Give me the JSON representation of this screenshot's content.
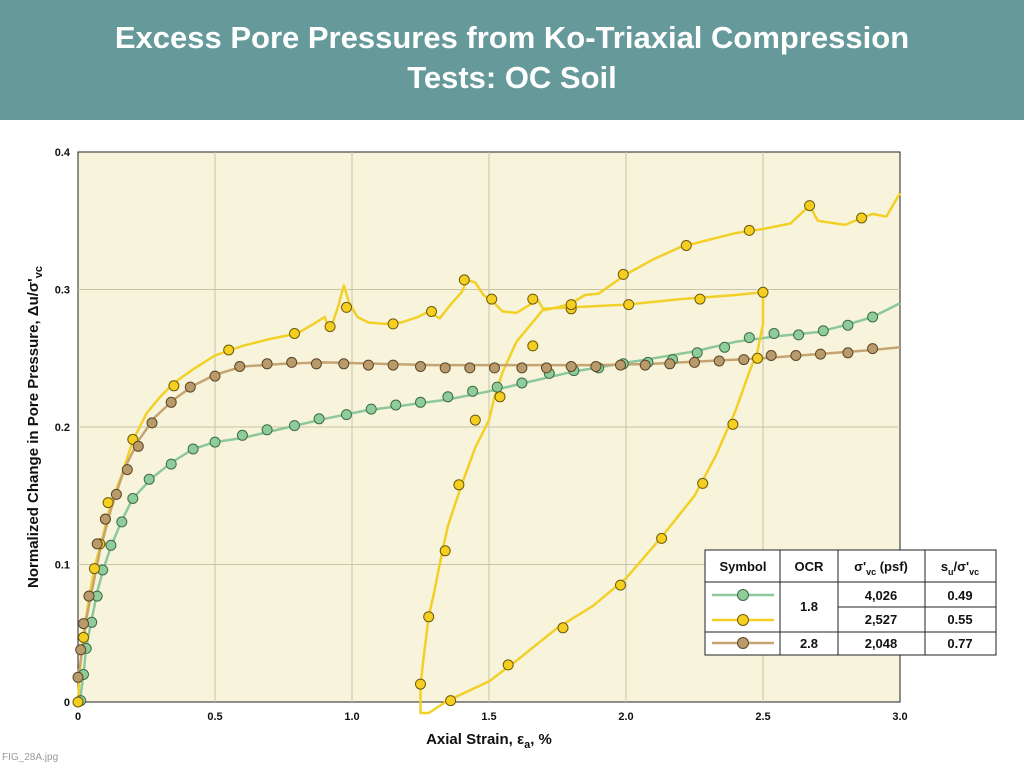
{
  "header": {
    "title_line1": "Excess Pore Pressures from Ko-Triaxial Compression",
    "title_line2": "Tests:  OC Soil"
  },
  "footer": {
    "label": "FIG_28A.jpg"
  },
  "colors": {
    "header_bg": "#65999a",
    "plot_bg": "#f8f4dc",
    "grid": "#c9c4a8"
  },
  "chart_data": {
    "type": "line",
    "xlabel": "Axial Strain, εa, %",
    "ylabel": "Normalized Change in Pore Pressure, Δu/σ'vc",
    "xlim": [
      0,
      3.0
    ],
    "ylim": [
      0,
      0.4
    ],
    "x_ticks": [
      0,
      0.5,
      1.0,
      1.5,
      2.0,
      2.5,
      3.0
    ],
    "x_tick_labels": [
      "0",
      "0.5",
      "1.0",
      "1.5",
      "2.0",
      "2.5",
      "3.0"
    ],
    "y_ticks": [
      0,
      0.1,
      0.2,
      0.3,
      0.4
    ],
    "y_tick_labels": [
      "0",
      "0.1",
      "0.2",
      "0.3",
      "0.4"
    ],
    "grid": true,
    "legend_placement": "bottom-right",
    "legend": {
      "headers": [
        "Symbol",
        "OCR",
        "σ'vc (psf)",
        "su/σ'vc"
      ],
      "rows": [
        {
          "series": "green",
          "ocr": "1.8",
          "sigma": "4,026",
          "su": "0.49"
        },
        {
          "series": "yellow",
          "ocr": "",
          "sigma": "2,527",
          "su": "0.55"
        },
        {
          "series": "brown",
          "ocr": "2.8",
          "sigma": "2,048",
          "su": "0.77"
        }
      ]
    },
    "series": [
      {
        "key": "green",
        "color": "#8cc89a",
        "marker": "#8fcc9b",
        "marker_stroke": "#3d6b45",
        "line": [
          [
            0,
            0
          ],
          [
            0.01,
            0.005
          ],
          [
            0.02,
            0.02
          ],
          [
            0.03,
            0.04
          ],
          [
            0.05,
            0.06
          ],
          [
            0.07,
            0.08
          ],
          [
            0.09,
            0.095
          ],
          [
            0.12,
            0.113
          ],
          [
            0.16,
            0.132
          ],
          [
            0.2,
            0.148
          ],
          [
            0.27,
            0.163
          ],
          [
            0.34,
            0.174
          ],
          [
            0.42,
            0.184
          ],
          [
            0.5,
            0.189
          ],
          [
            0.6,
            0.192
          ],
          [
            0.75,
            0.199
          ],
          [
            0.9,
            0.206
          ],
          [
            1.05,
            0.212
          ],
          [
            1.2,
            0.216
          ],
          [
            1.35,
            0.22
          ],
          [
            1.5,
            0.226
          ],
          [
            1.65,
            0.233
          ],
          [
            1.8,
            0.24
          ],
          [
            1.95,
            0.245
          ],
          [
            2.1,
            0.25
          ],
          [
            2.25,
            0.255
          ],
          [
            2.4,
            0.262
          ],
          [
            2.55,
            0.266
          ],
          [
            2.7,
            0.269
          ],
          [
            2.8,
            0.274
          ],
          [
            2.9,
            0.28
          ],
          [
            3.0,
            0.29
          ]
        ],
        "markers": [
          [
            0.01,
            0.001
          ],
          [
            0.02,
            0.02
          ],
          [
            0.03,
            0.039
          ],
          [
            0.05,
            0.058
          ],
          [
            0.07,
            0.077
          ],
          [
            0.09,
            0.096
          ],
          [
            0.12,
            0.114
          ],
          [
            0.16,
            0.131
          ],
          [
            0.2,
            0.148
          ],
          [
            0.26,
            0.162
          ],
          [
            0.34,
            0.173
          ],
          [
            0.42,
            0.184
          ],
          [
            0.5,
            0.189
          ],
          [
            0.6,
            0.194
          ],
          [
            0.69,
            0.198
          ],
          [
            0.79,
            0.201
          ],
          [
            0.88,
            0.206
          ],
          [
            0.98,
            0.209
          ],
          [
            1.07,
            0.213
          ],
          [
            1.16,
            0.216
          ],
          [
            1.25,
            0.218
          ],
          [
            1.35,
            0.222
          ],
          [
            1.44,
            0.226
          ],
          [
            1.53,
            0.229
          ],
          [
            1.62,
            0.232
          ],
          [
            1.72,
            0.239
          ],
          [
            1.81,
            0.241
          ],
          [
            1.9,
            0.243
          ],
          [
            1.99,
            0.246
          ],
          [
            2.08,
            0.247
          ],
          [
            2.17,
            0.249
          ],
          [
            2.26,
            0.254
          ],
          [
            2.36,
            0.258
          ],
          [
            2.45,
            0.265
          ],
          [
            2.54,
            0.268
          ],
          [
            2.63,
            0.267
          ],
          [
            2.72,
            0.27
          ],
          [
            2.81,
            0.274
          ],
          [
            2.9,
            0.28
          ]
        ]
      },
      {
        "key": "yellow",
        "color": "#f2d027",
        "marker": "#f5cf1f",
        "marker_stroke": "#6e5a08",
        "line": [
          [
            0,
            0.0
          ],
          [
            0.01,
            0.03
          ],
          [
            0.02,
            0.05
          ],
          [
            0.04,
            0.075
          ],
          [
            0.06,
            0.098
          ],
          [
            0.09,
            0.12
          ],
          [
            0.12,
            0.145
          ],
          [
            0.16,
            0.165
          ],
          [
            0.2,
            0.19
          ],
          [
            0.25,
            0.21
          ],
          [
            0.3,
            0.222
          ],
          [
            0.35,
            0.232
          ],
          [
            0.42,
            0.242
          ],
          [
            0.5,
            0.252
          ],
          [
            0.6,
            0.259
          ],
          [
            0.7,
            0.264
          ],
          [
            0.8,
            0.268
          ],
          [
            0.86,
            0.275
          ],
          [
            0.9,
            0.28
          ],
          [
            0.92,
            0.27
          ],
          [
            0.95,
            0.288
          ],
          [
            0.97,
            0.303
          ],
          [
            0.99,
            0.29
          ],
          [
            1.02,
            0.28
          ],
          [
            1.06,
            0.276
          ],
          [
            1.12,
            0.275
          ],
          [
            1.18,
            0.276
          ],
          [
            1.24,
            0.28
          ],
          [
            1.28,
            0.284
          ],
          [
            1.32,
            0.279
          ],
          [
            1.36,
            0.289
          ],
          [
            1.4,
            0.298
          ],
          [
            1.42,
            0.307
          ],
          [
            1.45,
            0.305
          ],
          [
            1.48,
            0.296
          ],
          [
            1.52,
            0.29
          ],
          [
            1.55,
            0.284
          ],
          [
            1.6,
            0.283
          ],
          [
            1.65,
            0.289
          ],
          [
            1.68,
            0.292
          ],
          [
            1.7,
            0.285
          ],
          [
            1.75,
            0.287
          ],
          [
            1.8,
            0.29
          ],
          [
            1.85,
            0.296
          ],
          [
            1.9,
            0.297
          ],
          [
            2.0,
            0.311
          ],
          [
            2.1,
            0.322
          ],
          [
            2.2,
            0.331
          ],
          [
            2.3,
            0.336
          ],
          [
            2.4,
            0.341
          ],
          [
            2.5,
            0.344
          ],
          [
            2.6,
            0.348
          ],
          [
            2.67,
            0.361
          ],
          [
            2.7,
            0.35
          ],
          [
            2.8,
            0.347
          ],
          [
            2.86,
            0.352
          ],
          [
            2.9,
            0.355
          ],
          [
            2.95,
            0.353
          ],
          [
            3.0,
            0.37
          ]
        ],
        "loop": [
          [
            1.8,
            0.287
          ],
          [
            1.7,
            0.286
          ],
          [
            1.6,
            0.262
          ],
          [
            1.55,
            0.24
          ],
          [
            1.52,
            0.222
          ],
          [
            1.5,
            0.205
          ],
          [
            1.45,
            0.185
          ],
          [
            1.4,
            0.158
          ],
          [
            1.35,
            0.128
          ],
          [
            1.33,
            0.11
          ],
          [
            1.3,
            0.08
          ],
          [
            1.28,
            0.062
          ],
          [
            1.26,
            0.03
          ],
          [
            1.25,
            0.012
          ],
          [
            1.25,
            -0.008
          ],
          [
            1.28,
            -0.008
          ],
          [
            1.35,
            0.001
          ],
          [
            1.5,
            0.015
          ],
          [
            1.6,
            0.03
          ],
          [
            1.75,
            0.054
          ],
          [
            1.88,
            0.07
          ],
          [
            2.0,
            0.09
          ],
          [
            2.13,
            0.12
          ],
          [
            2.25,
            0.15
          ],
          [
            2.33,
            0.18
          ],
          [
            2.4,
            0.212
          ],
          [
            2.45,
            0.24
          ],
          [
            2.48,
            0.255
          ],
          [
            2.5,
            0.275
          ],
          [
            2.5,
            0.298
          ],
          [
            2.4,
            0.296
          ],
          [
            2.2,
            0.293
          ],
          [
            2.0,
            0.289
          ],
          [
            1.8,
            0.287
          ]
        ],
        "markers": [
          [
            0.0,
            0.0
          ],
          [
            0.02,
            0.047
          ],
          [
            0.04,
            0.077
          ],
          [
            0.06,
            0.097
          ],
          [
            0.08,
            0.115
          ],
          [
            0.1,
            0.133
          ],
          [
            0.11,
            0.145
          ],
          [
            0.2,
            0.191
          ],
          [
            0.35,
            0.23
          ],
          [
            0.55,
            0.256
          ],
          [
            0.79,
            0.268
          ],
          [
            0.92,
            0.273
          ],
          [
            0.98,
            0.287
          ],
          [
            1.15,
            0.275
          ],
          [
            1.29,
            0.284
          ],
          [
            1.41,
            0.307
          ],
          [
            1.51,
            0.293
          ],
          [
            1.66,
            0.293
          ],
          [
            1.8,
            0.286
          ],
          [
            1.8,
            0.289
          ],
          [
            1.99,
            0.311
          ],
          [
            2.22,
            0.332
          ],
          [
            2.45,
            0.343
          ],
          [
            2.67,
            0.361
          ],
          [
            2.86,
            0.352
          ],
          [
            2.01,
            0.289
          ],
          [
            2.27,
            0.293
          ],
          [
            2.5,
            0.298
          ],
          [
            1.66,
            0.259
          ],
          [
            1.54,
            0.222
          ],
          [
            1.45,
            0.205
          ],
          [
            1.39,
            0.158
          ],
          [
            1.34,
            0.11
          ],
          [
            1.28,
            0.062
          ],
          [
            1.25,
            0.013
          ],
          [
            1.36,
            0.001
          ],
          [
            1.57,
            0.027
          ],
          [
            1.77,
            0.054
          ],
          [
            1.98,
            0.085
          ],
          [
            2.13,
            0.119
          ],
          [
            2.28,
            0.159
          ],
          [
            2.39,
            0.202
          ],
          [
            2.48,
            0.25
          ]
        ]
      },
      {
        "key": "brown",
        "color": "#c6a472",
        "marker": "#b99a6a",
        "marker_stroke": "#5c4628",
        "line": [
          [
            0,
            0.018
          ],
          [
            0.01,
            0.03
          ],
          [
            0.02,
            0.045
          ],
          [
            0.03,
            0.06
          ],
          [
            0.05,
            0.08
          ],
          [
            0.08,
            0.11
          ],
          [
            0.12,
            0.14
          ],
          [
            0.17,
            0.17
          ],
          [
            0.22,
            0.19
          ],
          [
            0.28,
            0.207
          ],
          [
            0.35,
            0.22
          ],
          [
            0.42,
            0.23
          ],
          [
            0.5,
            0.238
          ],
          [
            0.6,
            0.244
          ],
          [
            0.75,
            0.246
          ],
          [
            0.9,
            0.247
          ],
          [
            1.1,
            0.246
          ],
          [
            1.3,
            0.245
          ],
          [
            1.5,
            0.245
          ],
          [
            1.7,
            0.245
          ],
          [
            1.9,
            0.245
          ],
          [
            2.1,
            0.246
          ],
          [
            2.3,
            0.248
          ],
          [
            2.5,
            0.25
          ],
          [
            2.7,
            0.253
          ],
          [
            2.9,
            0.256
          ],
          [
            3.0,
            0.258
          ]
        ],
        "markers": [
          [
            0.0,
            0.018
          ],
          [
            0.01,
            0.038
          ],
          [
            0.02,
            0.057
          ],
          [
            0.04,
            0.077
          ],
          [
            0.07,
            0.115
          ],
          [
            0.1,
            0.133
          ],
          [
            0.14,
            0.151
          ],
          [
            0.18,
            0.169
          ],
          [
            0.22,
            0.186
          ],
          [
            0.27,
            0.203
          ],
          [
            0.34,
            0.218
          ],
          [
            0.41,
            0.229
          ],
          [
            0.5,
            0.237
          ],
          [
            0.59,
            0.244
          ],
          [
            0.69,
            0.246
          ],
          [
            0.78,
            0.247
          ],
          [
            0.87,
            0.246
          ],
          [
            0.97,
            0.246
          ],
          [
            1.06,
            0.245
          ],
          [
            1.15,
            0.245
          ],
          [
            1.25,
            0.244
          ],
          [
            1.34,
            0.243
          ],
          [
            1.43,
            0.243
          ],
          [
            1.52,
            0.243
          ],
          [
            1.62,
            0.243
          ],
          [
            1.71,
            0.243
          ],
          [
            1.8,
            0.244
          ],
          [
            1.89,
            0.244
          ],
          [
            1.98,
            0.245
          ],
          [
            2.07,
            0.245
          ],
          [
            2.16,
            0.246
          ],
          [
            2.25,
            0.247
          ],
          [
            2.34,
            0.248
          ],
          [
            2.43,
            0.249
          ],
          [
            2.53,
            0.252
          ],
          [
            2.62,
            0.252
          ],
          [
            2.71,
            0.253
          ],
          [
            2.81,
            0.254
          ],
          [
            2.9,
            0.257
          ]
        ]
      }
    ]
  }
}
